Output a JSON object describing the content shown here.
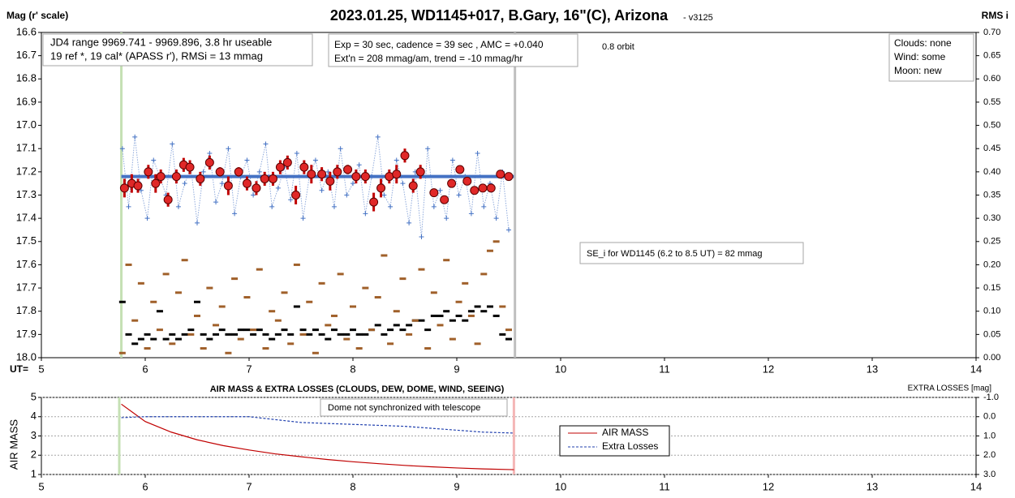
{
  "chart_data": [
    {
      "type": "scatter",
      "title": "2023.01.25, WD1145+017, B.Gary, 16\"(C), Arizona",
      "subtitle": " - v3125",
      "ylabel": "Mag (r' scale)",
      "y2label": "RMS i",
      "xlabel": "UT=",
      "xlim": [
        5,
        14
      ],
      "xticks": [
        5,
        6,
        7,
        8,
        9,
        10,
        11,
        12,
        13,
        14
      ],
      "ylim": [
        18.0,
        16.6
      ],
      "yticks": [
        16.6,
        16.7,
        16.8,
        16.9,
        {
          "value": 17.0,
          "label": "17.0"
        },
        17.1,
        17.2,
        17.3,
        17.4,
        17.5,
        17.6,
        17.7,
        17.8,
        17.9,
        {
          "value": 18.0,
          "label": "18.0"
        }
      ],
      "y2lim": [
        0,
        0.7
      ],
      "y2ticks": [
        {
          "value": 0.7,
          "label": "0.70"
        },
        0.65,
        {
          "value": 0.6,
          "label": "0.60"
        },
        0.55,
        {
          "value": 0.5,
          "label": "0.50"
        },
        0.45,
        {
          "value": 0.4,
          "label": "0.40"
        },
        0.35,
        {
          "value": 0.3,
          "label": "0.30"
        },
        0.25,
        {
          "value": 0.2,
          "label": "0.20"
        },
        0.15,
        {
          "value": 0.1,
          "label": "0.10"
        },
        0.05,
        {
          "value": 0,
          "label": "0.00"
        }
      ],
      "grid": false,
      "vlines": [
        {
          "x": 5.77,
          "color": "#c5e0b4"
        },
        {
          "x": 9.56,
          "color": "#bfbfbf"
        }
      ],
      "reference_line": {
        "y": 17.22,
        "x": [
          5.77,
          9.55
        ],
        "color": "#4472c4"
      },
      "series": [
        {
          "color": "#4472c4",
          "marker": "cross",
          "line": "dotted",
          "x": [
            5.78,
            5.84,
            5.9,
            5.96,
            6.02,
            6.08,
            6.14,
            6.2,
            6.26,
            6.32,
            6.38,
            6.44,
            6.5,
            6.56,
            6.62,
            6.68,
            6.74,
            6.8,
            6.86,
            6.92,
            6.98,
            7.04,
            7.1,
            7.16,
            7.22,
            7.28,
            7.34,
            7.4,
            7.46,
            7.52,
            7.58,
            7.64,
            7.7,
            7.76,
            7.82,
            7.88,
            7.94,
            8.0,
            8.06,
            8.12,
            8.18,
            8.24,
            8.3,
            8.36,
            8.42,
            8.48,
            8.54,
            8.6,
            8.66,
            8.72,
            8.78,
            8.84,
            8.9,
            8.96,
            9.02,
            9.08,
            9.14,
            9.2,
            9.26,
            9.32,
            9.38,
            9.44,
            9.5
          ],
          "values": [
            17.1,
            17.35,
            17.05,
            17.28,
            17.4,
            17.15,
            17.22,
            17.3,
            17.08,
            17.35,
            17.25,
            17.18,
            17.42,
            17.2,
            17.12,
            17.33,
            17.25,
            17.1,
            17.38,
            17.22,
            17.15,
            17.3,
            17.2,
            17.08,
            17.35,
            17.27,
            17.18,
            17.32,
            17.12,
            17.4,
            17.22,
            17.15,
            17.28,
            17.2,
            17.35,
            17.1,
            17.3,
            17.25,
            17.17,
            17.38,
            17.22,
            17.05,
            17.3,
            17.35,
            17.15,
            17.25,
            17.42,
            17.2,
            17.48,
            17.1,
            17.35,
            17.28,
            17.4,
            17.15,
            17.3,
            17.22,
            17.38,
            17.12,
            17.35,
            17.25,
            17.4,
            17.2,
            17.45
          ]
        },
        {
          "color": "#e02828",
          "marker": "circle",
          "x": [
            5.8,
            5.87,
            5.93,
            6.03,
            6.1,
            6.15,
            6.22,
            6.3,
            6.37,
            6.43,
            6.53,
            6.62,
            6.72,
            6.8,
            6.9,
            6.98,
            7.07,
            7.15,
            7.23,
            7.3,
            7.37,
            7.45,
            7.53,
            7.6,
            7.7,
            7.78,
            7.85,
            7.95,
            8.03,
            8.12,
            8.2,
            8.27,
            8.35,
            8.42,
            8.5,
            8.58,
            8.65,
            8.78,
            8.88,
            8.95,
            9.03,
            9.1,
            9.17,
            9.25,
            9.33,
            9.42,
            9.5
          ],
          "values": [
            17.27,
            17.25,
            17.26,
            17.2,
            17.25,
            17.22,
            17.32,
            17.22,
            17.17,
            17.18,
            17.23,
            17.16,
            17.2,
            17.26,
            17.2,
            17.25,
            17.27,
            17.23,
            17.23,
            17.18,
            17.16,
            17.3,
            17.18,
            17.21,
            17.21,
            17.24,
            17.2,
            17.19,
            17.22,
            17.22,
            17.33,
            17.27,
            17.22,
            17.21,
            17.13,
            17.26,
            17.2,
            17.29,
            17.32,
            17.25,
            17.19,
            17.24,
            17.28,
            17.27,
            17.27,
            17.21,
            17.22
          ],
          "errors": [
            0.04,
            0.04,
            0.03,
            0.03,
            0.04,
            0.03,
            0.03,
            0.03,
            0.03,
            0.03,
            0.03,
            0.03,
            0.02,
            0.04,
            0.02,
            0.03,
            0.03,
            0.03,
            0.03,
            0.03,
            0.03,
            0.04,
            0.03,
            0.04,
            0.03,
            0.04,
            0.03,
            0.02,
            0.03,
            0.03,
            0.04,
            0.04,
            0.03,
            0.04,
            0.03,
            0.03,
            0.03,
            0.0,
            0.0,
            0.0,
            0.0,
            0.0,
            0.0,
            0.0,
            0.0,
            0.0,
            0.0
          ]
        },
        {
          "color": "#000000",
          "marker": "dash",
          "axis": "y2",
          "x": [
            5.78,
            5.84,
            5.9,
            5.96,
            6.02,
            6.08,
            6.14,
            6.2,
            6.26,
            6.32,
            6.38,
            6.44,
            6.5,
            6.56,
            6.62,
            6.68,
            6.74,
            6.8,
            6.86,
            6.92,
            6.98,
            7.04,
            7.1,
            7.16,
            7.22,
            7.28,
            7.34,
            7.4,
            7.46,
            7.52,
            7.58,
            7.64,
            7.7,
            7.76,
            7.82,
            7.88,
            7.94,
            8.0,
            8.06,
            8.12,
            8.18,
            8.24,
            8.3,
            8.36,
            8.42,
            8.48,
            8.54,
            8.6,
            8.66,
            8.72,
            8.78,
            8.84,
            8.9,
            8.96,
            9.02,
            9.08,
            9.14,
            9.2,
            9.26,
            9.32,
            9.38,
            9.44,
            9.5
          ],
          "values": [
            0.12,
            0.05,
            0.03,
            0.04,
            0.05,
            0.04,
            0.1,
            0.04,
            0.05,
            0.04,
            0.05,
            0.06,
            0.12,
            0.05,
            0.04,
            0.05,
            0.06,
            0.05,
            0.05,
            0.06,
            0.06,
            0.05,
            0.06,
            0.05,
            0.04,
            0.05,
            0.06,
            0.05,
            0.11,
            0.06,
            0.05,
            0.06,
            0.05,
            0.04,
            0.06,
            0.05,
            0.05,
            0.06,
            0.05,
            0.05,
            0.06,
            0.07,
            0.05,
            0.06,
            0.07,
            0.06,
            0.07,
            0.08,
            0.08,
            0.06,
            0.09,
            0.09,
            0.1,
            0.08,
            0.09,
            0.08,
            0.1,
            0.11,
            0.1,
            0.11,
            0.09,
            0.05,
            0.04
          ]
        },
        {
          "color": "#a0602a",
          "marker": "dash",
          "axis": "y2",
          "x": [
            5.78,
            5.84,
            5.9,
            5.96,
            6.02,
            6.08,
            6.14,
            6.2,
            6.26,
            6.32,
            6.38,
            6.44,
            6.5,
            6.56,
            6.62,
            6.68,
            6.74,
            6.8,
            6.86,
            6.92,
            6.98,
            7.04,
            7.1,
            7.16,
            7.22,
            7.28,
            7.34,
            7.4,
            7.46,
            7.52,
            7.58,
            7.64,
            7.7,
            7.76,
            7.82,
            7.88,
            7.94,
            8.0,
            8.06,
            8.12,
            8.18,
            8.24,
            8.3,
            8.36,
            8.42,
            8.48,
            8.54,
            8.6,
            8.66,
            8.72,
            8.78,
            8.84,
            8.9,
            8.96,
            9.02,
            9.08,
            9.14,
            9.2,
            9.26,
            9.32,
            9.38,
            9.44,
            9.5
          ],
          "values": [
            0.01,
            0.2,
            0.08,
            0.16,
            0.02,
            0.12,
            0.06,
            0.18,
            0.03,
            0.14,
            0.21,
            0.05,
            0.09,
            0.02,
            0.15,
            0.07,
            0.11,
            0.01,
            0.17,
            0.04,
            0.13,
            0.06,
            0.19,
            0.02,
            0.1,
            0.08,
            0.14,
            0.03,
            0.2,
            0.05,
            0.12,
            0.01,
            0.16,
            0.07,
            0.09,
            0.18,
            0.04,
            0.11,
            0.02,
            0.15,
            0.06,
            0.13,
            0.22,
            0.03,
            0.1,
            0.17,
            0.05,
            0.08,
            0.19,
            0.02,
            0.14,
            0.07,
            0.21,
            0.04,
            0.12,
            0.16,
            0.09,
            0.03,
            0.18,
            0.23,
            0.25,
            0.11,
            0.06
          ]
        }
      ],
      "annotations": {
        "range_box": [
          "JD4 range 9969.741 - 9969.896, 3.8 hr useable",
          "19 ref *, 19 cal*  (APASS r'), RMSi = 13 mmag"
        ],
        "exposure_box": [
          "Exp = 30 sec, cadence = 39 sec , AMC = +0.040",
          "Ext'n = 208 mmag/am, trend = -10 mmag/hr"
        ],
        "orbit": "0.8 orbit",
        "conditions": [
          "Clouds: none",
          "Wind:   some",
          "Moon:   new"
        ],
        "se_box": "SE_i for WD1145 (6.2 to 8.5 UT) = 82 mmag"
      }
    },
    {
      "type": "line",
      "title": "AIR MASS & EXTRA LOSSES (CLOUDS, DEW, DOME, WIND, SEEING)",
      "ylabel": "AIR MASS",
      "y2label": "EXTRA LOSSES [mag]",
      "xlim": [
        5,
        14
      ],
      "xticks": [
        5,
        6,
        7,
        8,
        9,
        10,
        11,
        12,
        13,
        14
      ],
      "ylim": [
        1,
        5
      ],
      "yticks": [
        1,
        2,
        3,
        4,
        5
      ],
      "y2lim": [
        3.0,
        -1.0
      ],
      "y2ticks": [
        {
          "value": -1.0,
          "label": "-1.0"
        },
        {
          "value": 0,
          "label": "0.0"
        },
        {
          "value": 1.0,
          "label": "1.0"
        },
        {
          "value": 2.0,
          "label": "2.0"
        },
        {
          "value": 3.0,
          "label": "3.0"
        }
      ],
      "grid": true,
      "vlines": [
        {
          "x": 5.75,
          "color": "#c5e0b4"
        },
        {
          "x": 9.55,
          "color": "#f4b6b6"
        }
      ],
      "annotation": "Dome not synchronized with telescope",
      "series": [
        {
          "name": "AIR MASS",
          "color": "#c00000",
          "line": "solid",
          "x": [
            5.77,
            6.0,
            6.25,
            6.5,
            6.75,
            7.0,
            7.25,
            7.5,
            7.75,
            8.0,
            8.25,
            8.5,
            8.75,
            9.0,
            9.25,
            9.55
          ],
          "values": [
            4.65,
            3.75,
            3.2,
            2.8,
            2.5,
            2.27,
            2.07,
            1.92,
            1.78,
            1.66,
            1.56,
            1.47,
            1.4,
            1.34,
            1.29,
            1.25
          ]
        },
        {
          "name": "Extra Losses",
          "color": "#1f3fae",
          "line": "dashed",
          "axis": "y2",
          "x": [
            5.77,
            6.0,
            6.25,
            6.5,
            6.75,
            7.0,
            7.25,
            7.5,
            7.75,
            8.0,
            8.25,
            8.5,
            8.75,
            9.0,
            9.25,
            9.55
          ],
          "values": [
            0.05,
            0.0,
            0.0,
            0.0,
            0.0,
            0.0,
            0.15,
            0.3,
            0.35,
            0.4,
            0.45,
            0.5,
            0.6,
            0.7,
            0.8,
            0.85
          ]
        }
      ]
    }
  ]
}
